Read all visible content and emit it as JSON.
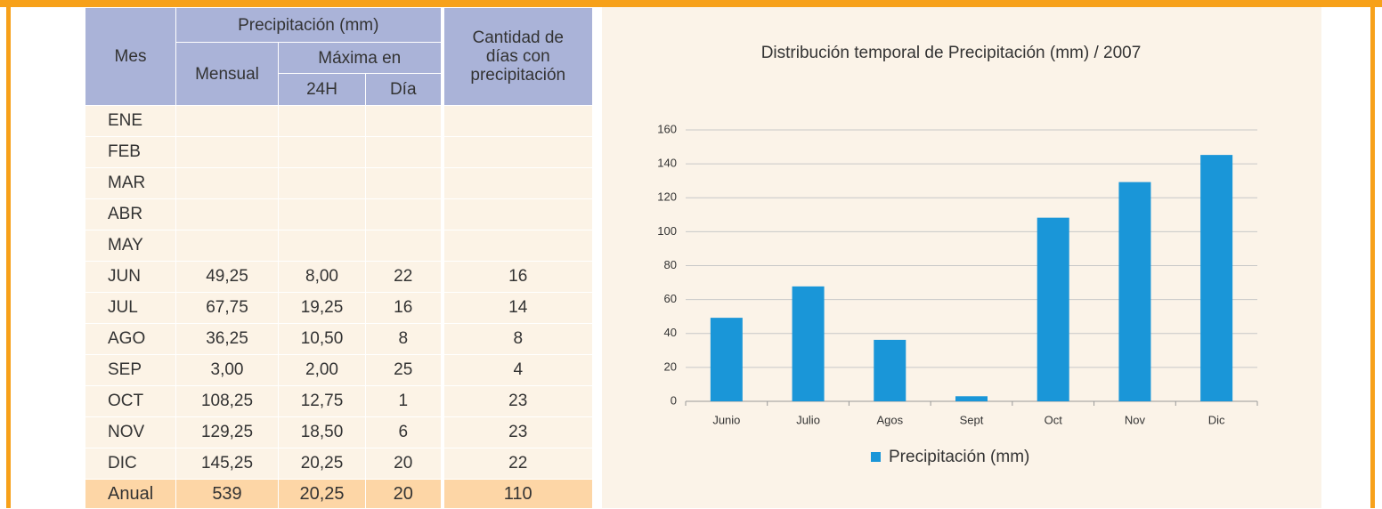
{
  "table": {
    "headers": {
      "month": "Mes",
      "precipitation": "Precipitación (mm)",
      "monthly": "Mensual",
      "max": "Máxima en",
      "max_24h": "24H",
      "max_day": "Día",
      "rain_days": "Cantidad de días con precipitación"
    },
    "rows": [
      [
        "ENE",
        null,
        null,
        null,
        null
      ],
      [
        "FEB",
        null,
        null,
        null,
        null
      ],
      [
        "MAR",
        null,
        null,
        null,
        null
      ],
      [
        "ABR",
        null,
        null,
        null,
        null
      ],
      [
        "MAY",
        null,
        null,
        null,
        null
      ],
      [
        "JUN",
        "49,25",
        "8,00",
        "22",
        "16"
      ],
      [
        "JUL",
        "67,75",
        "19,25",
        "16",
        "14"
      ],
      [
        "AGO",
        "36,25",
        "10,50",
        "8",
        "8"
      ],
      [
        "SEP",
        "3,00",
        "2,00",
        "25",
        "4"
      ],
      [
        "OCT",
        "108,25",
        "12,75",
        "1",
        "23"
      ],
      [
        "NOV",
        "129,25",
        "18,50",
        "6",
        "23"
      ],
      [
        "DIC",
        "145,25",
        "20,25",
        "20",
        "22"
      ]
    ],
    "total": [
      "Anual",
      "539",
      "20,25",
      "20",
      "110"
    ]
  },
  "chart_data": {
    "type": "bar",
    "title": "Distribución temporal de Precipitación (mm) / 2007",
    "categories": [
      "Junio",
      "Julio",
      "Agos",
      "Sept",
      "Oct",
      "Nov",
      "Dic"
    ],
    "series": [
      {
        "name": "Precipitación (mm)",
        "color": "#1a96d8",
        "values": [
          49.25,
          67.75,
          36.25,
          3,
          108.25,
          129.25,
          145.25
        ]
      }
    ],
    "ylim": [
      0,
      160
    ],
    "yticks": [
      0,
      20,
      40,
      60,
      80,
      100,
      120,
      140,
      160
    ],
    "grid": true,
    "legend": "bottom"
  }
}
